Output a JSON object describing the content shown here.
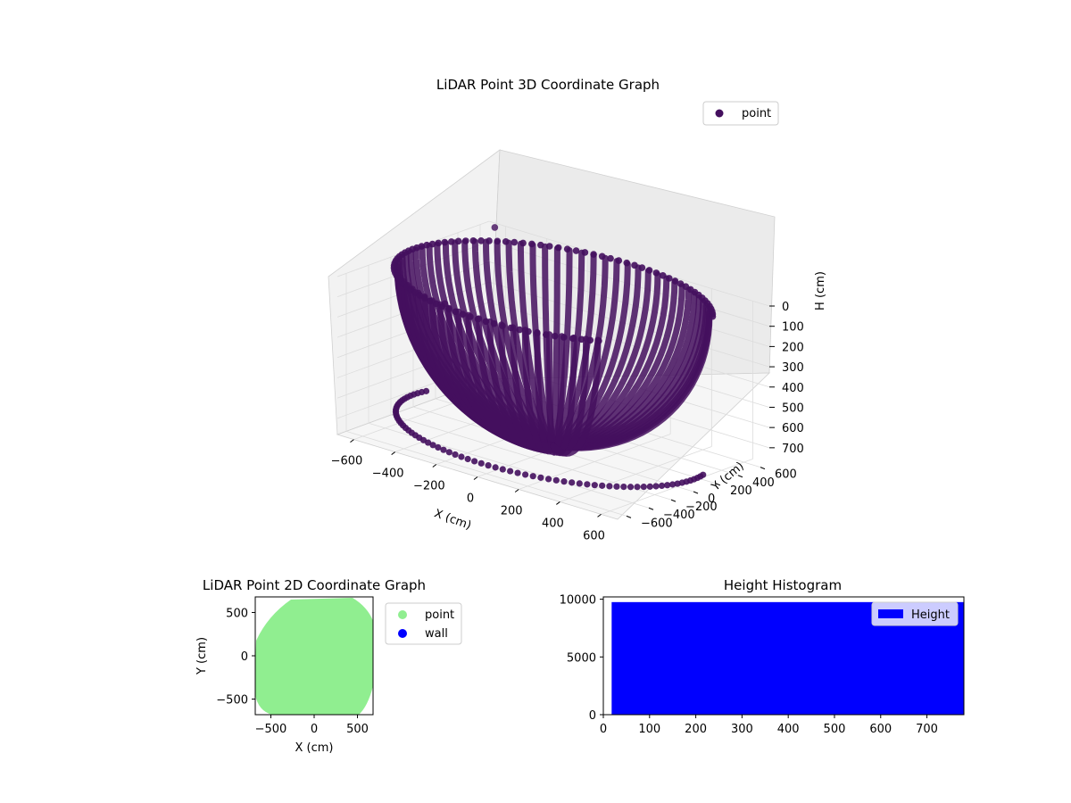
{
  "chart_data": [
    {
      "type": "scatter",
      "projection": "3d",
      "title": "LiDAR Point 3D Coordinate Graph",
      "xlabel": "X (cm)",
      "ylabel": "Y (cm)",
      "zlabel": "H (cm)",
      "x_ticks": [
        -600,
        -400,
        -200,
        0,
        200,
        400,
        600
      ],
      "y_ticks": [
        -600,
        -400,
        -200,
        0,
        200,
        400,
        600
      ],
      "z_ticks": [
        0,
        100,
        200,
        300,
        400,
        500,
        600,
        700
      ],
      "xlim": [
        -680,
        680
      ],
      "ylim": [
        -680,
        680
      ],
      "zlim": [
        0,
        780
      ],
      "z_inverted": true,
      "grid": true,
      "legend": {
        "placement": "top-right",
        "entries": [
          "point"
        ]
      },
      "series": [
        {
          "name": "point",
          "color": "#440f5e",
          "shape": "hemispherical dome of scan rings, radius about 680 cm, height up to about 780 cm",
          "outliers": [
            {
              "x": -620,
              "y": 620,
              "h": 0
            },
            {
              "x": -640,
              "y": 210,
              "h": 300
            }
          ]
        }
      ]
    },
    {
      "type": "scatter",
      "title": "LiDAR Point 2D Coordinate Graph",
      "xlabel": "X (cm)",
      "ylabel": "Y (cm)",
      "x_ticks": [
        -500,
        0,
        500
      ],
      "y_ticks": [
        -500,
        0,
        500
      ],
      "xlim": [
        -680,
        680
      ],
      "ylim": [
        -680,
        680
      ],
      "legend": {
        "placement": "outside-right",
        "entries": [
          "point",
          "wall"
        ]
      },
      "series": [
        {
          "name": "point",
          "color": "#90ee90",
          "shape": "filled disc radius about 650 cm"
        },
        {
          "name": "wall",
          "color": "#0000ff",
          "values": []
        }
      ]
    },
    {
      "type": "bar",
      "title": "Height Histogram",
      "x_ticks": [
        0,
        100,
        200,
        300,
        400,
        500,
        600,
        700
      ],
      "y_ticks": [
        0,
        5000,
        10000
      ],
      "xlim": [
        0,
        780
      ],
      "ylim": [
        0,
        10200
      ],
      "legend": {
        "placement": "top-right",
        "entries": [
          "Height"
        ]
      },
      "series": [
        {
          "name": "Height",
          "color": "#0000ff",
          "bin_range": [
            18,
            780
          ],
          "count": 9750
        }
      ]
    }
  ]
}
